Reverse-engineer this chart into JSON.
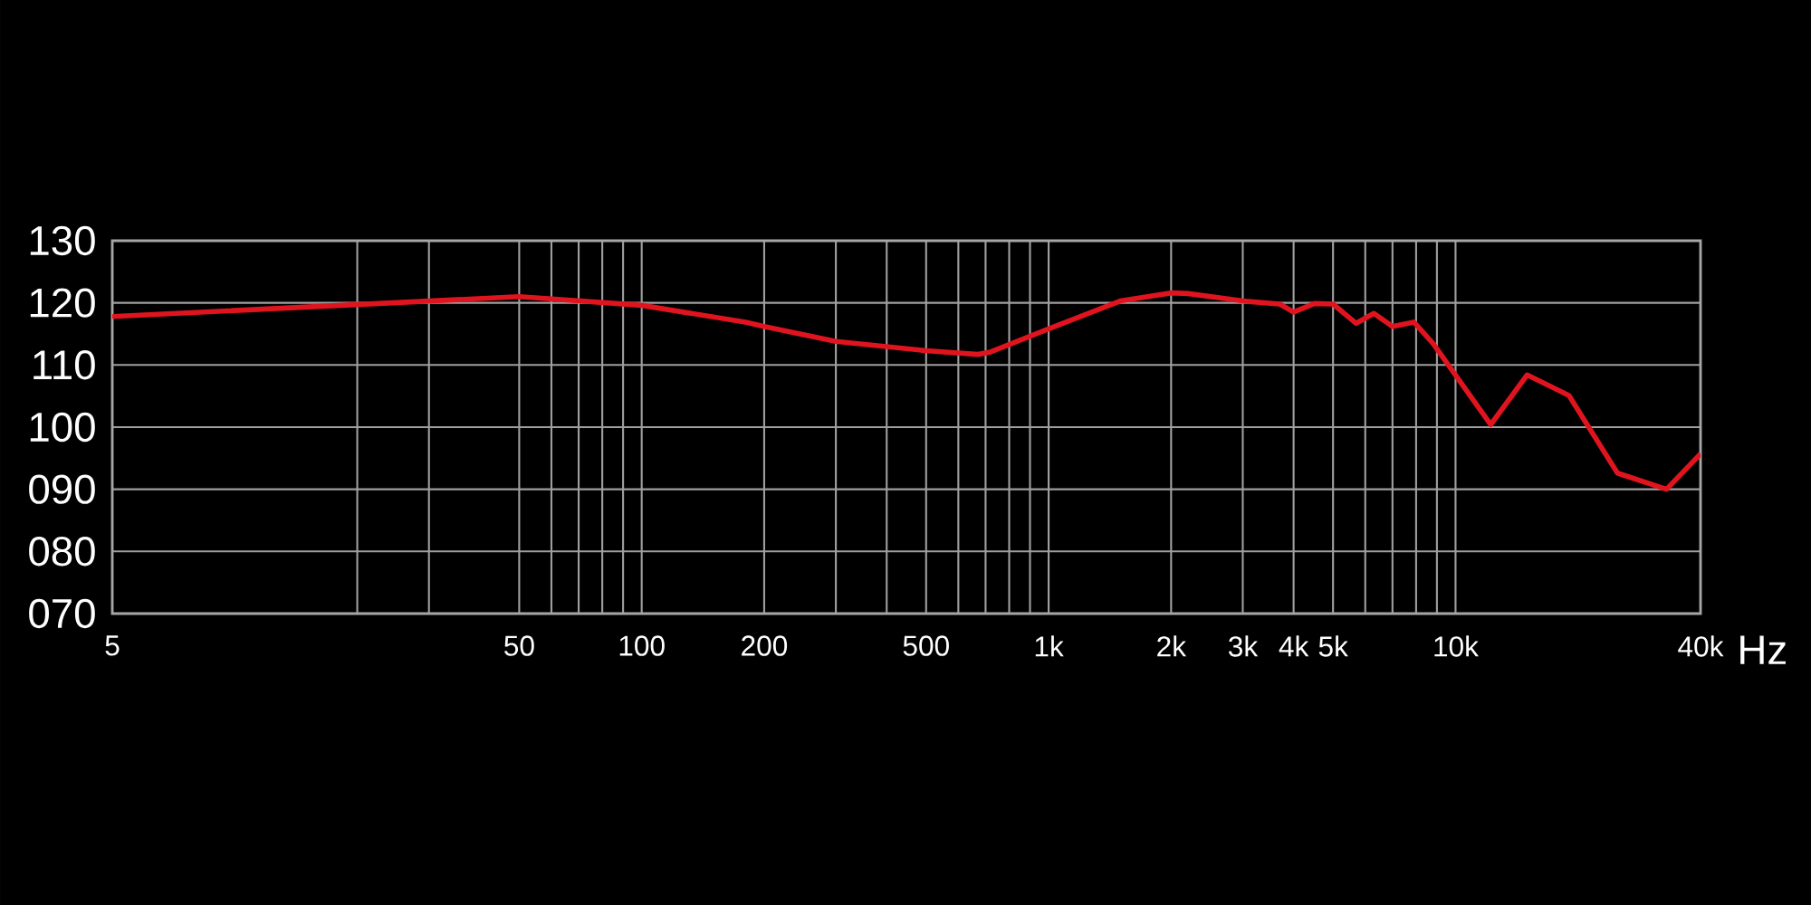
{
  "chart_data": {
    "type": "line",
    "xlabel": "Hz",
    "x": [
      5,
      50,
      100,
      180,
      200,
      300,
      500,
      670,
      720,
      1000,
      1500,
      2000,
      2200,
      3000,
      3700,
      4000,
      4500,
      5000,
      5700,
      6300,
      7000,
      7900,
      8800,
      12200,
      15000,
      19000,
      25000,
      33000,
      40000
    ],
    "values": [
      117.8,
      121.0,
      119.6,
      116.9,
      116.2,
      113.8,
      112.3,
      111.7,
      112.1,
      115.8,
      120.3,
      121.6,
      121.5,
      120.3,
      119.8,
      118.5,
      119.9,
      119.8,
      116.7,
      118.3,
      116.2,
      116.9,
      113.5,
      100.4,
      108.4,
      105.1,
      92.6,
      90.0,
      95.7
    ],
    "color": "#e0141e",
    "xlim": [
      5,
      40000
    ],
    "ylim": [
      70,
      130
    ],
    "log": "x",
    "grid": true,
    "xticks": [
      5,
      {
        "value": 20,
        "label": null
      },
      {
        "value": 30,
        "label": null
      },
      50,
      {
        "value": 60,
        "label": null
      },
      {
        "value": 70,
        "label": null
      },
      {
        "value": 80,
        "label": null
      },
      {
        "value": 90,
        "label": null
      },
      100,
      200,
      {
        "value": 300,
        "label": null
      },
      {
        "value": 400,
        "label": null
      },
      500,
      {
        "value": 600,
        "label": null
      },
      {
        "value": 700,
        "label": null
      },
      {
        "value": 800,
        "label": null
      },
      {
        "value": 900,
        "label": null
      },
      {
        "value": 1000,
        "label": "1k"
      },
      {
        "value": 2000,
        "label": "2k"
      },
      {
        "value": 3000,
        "label": "3k"
      },
      {
        "value": 4000,
        "label": "4k"
      },
      {
        "value": 5000,
        "label": "5k"
      },
      {
        "value": 6000,
        "label": null
      },
      {
        "value": 7000,
        "label": null
      },
      {
        "value": 8000,
        "label": null
      },
      {
        "value": 9000,
        "label": null
      },
      {
        "value": 10000,
        "label": "10k"
      },
      {
        "value": 40000,
        "label": "40k"
      }
    ],
    "yticks": [
      {
        "value": 70,
        "label": "070"
      },
      {
        "value": 80,
        "label": "080"
      },
      {
        "value": 90,
        "label": "090"
      },
      100,
      110,
      120,
      130
    ]
  }
}
